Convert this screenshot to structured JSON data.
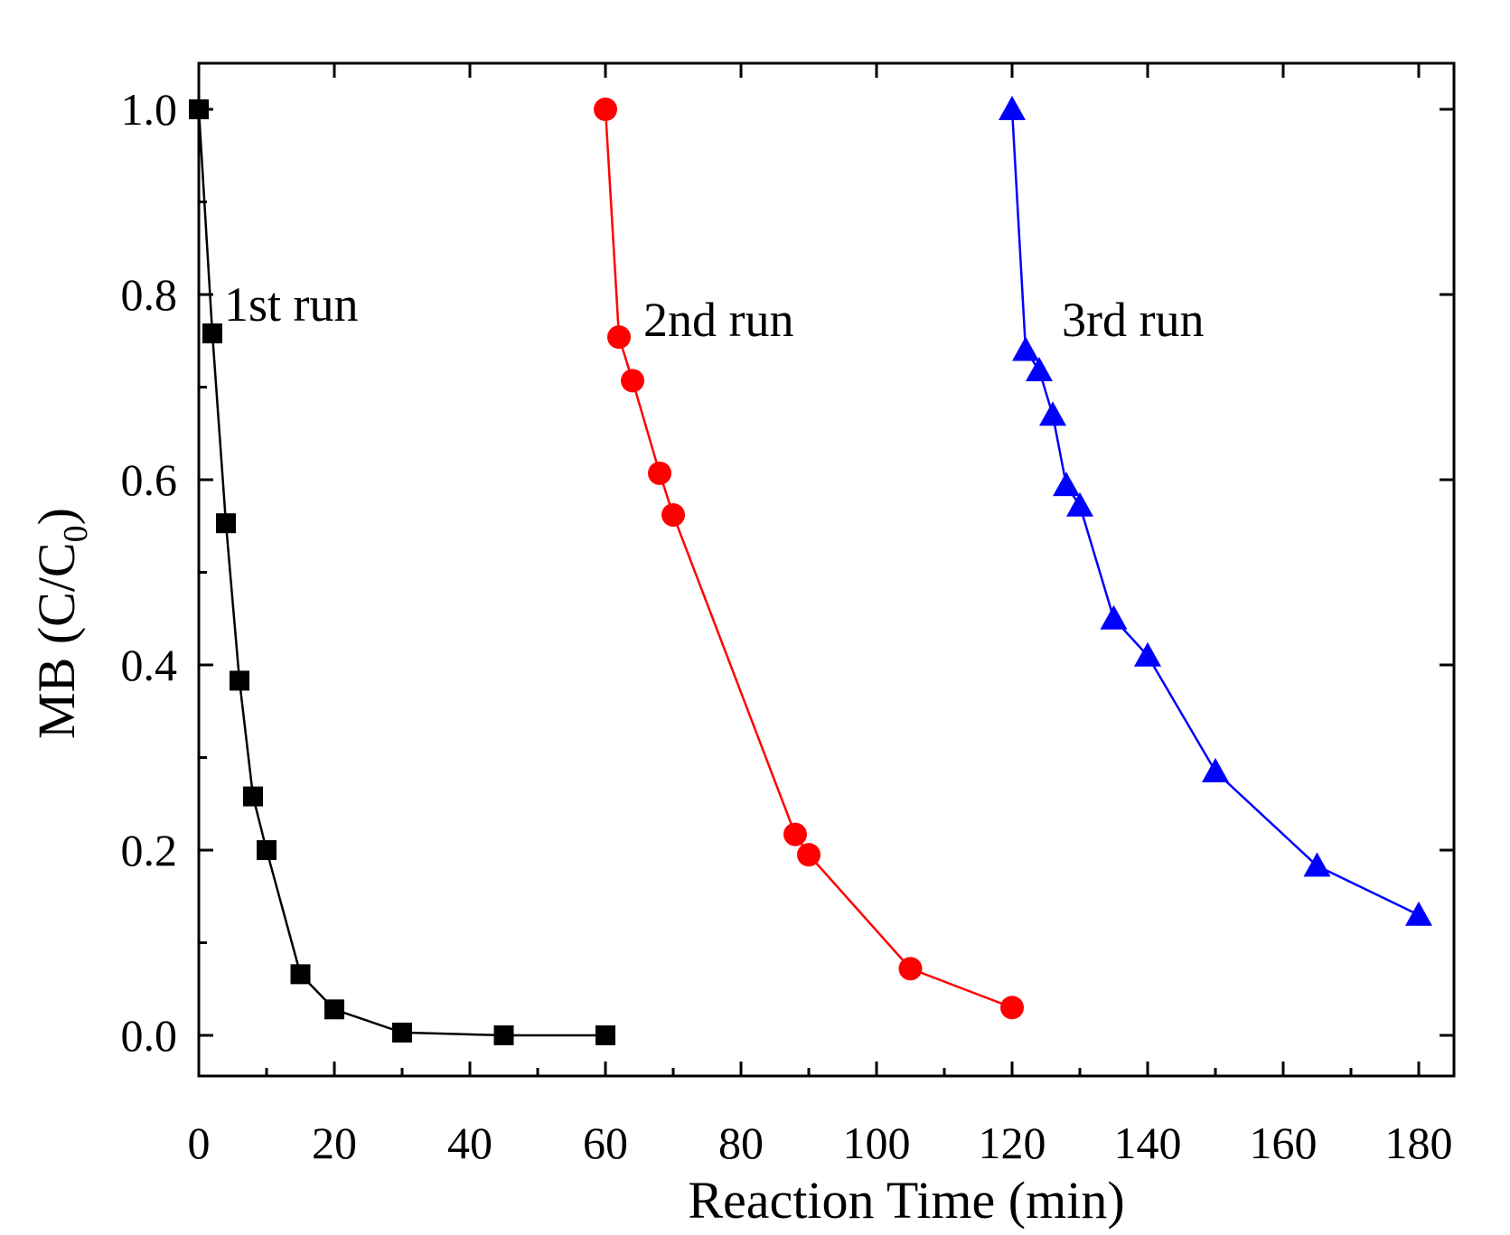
{
  "chart_data": {
    "type": "line",
    "title": "",
    "xlabel": "Reaction Time (min)",
    "ylabel_main": "MB (C/C",
    "ylabel_sub": "0",
    "ylabel_close": ")",
    "xlim": [
      0,
      185
    ],
    "ylim": [
      -0.05,
      1.05
    ],
    "xticks": [
      0,
      20,
      40,
      60,
      80,
      100,
      120,
      140,
      160,
      180
    ],
    "xtick_labels": [
      "0",
      "20",
      "40",
      "60",
      "80",
      "100",
      "120",
      "140",
      "160",
      "180"
    ],
    "yticks": [
      0.0,
      0.2,
      0.4,
      0.6,
      0.8,
      1.0
    ],
    "ytick_labels": [
      "0.0",
      "0.2",
      "0.4",
      "0.6",
      "0.8",
      "1.0"
    ],
    "x_minor_step": 10,
    "y_minor_step": 0.1,
    "grid": false,
    "series": [
      {
        "name": "1st run",
        "marker": "square",
        "color": "#000000",
        "x": [
          0,
          2,
          4,
          6,
          8,
          10,
          15,
          20,
          30,
          45,
          60
        ],
        "y": [
          1.0,
          0.758,
          0.553,
          0.383,
          0.258,
          0.2,
          0.066,
          0.028,
          0.003,
          0.0,
          0.0
        ]
      },
      {
        "name": "2nd run",
        "marker": "circle",
        "color": "#ff0000",
        "x": [
          60,
          62,
          64,
          68,
          70,
          88,
          90,
          105,
          120
        ],
        "y": [
          1.0,
          0.754,
          0.707,
          0.607,
          0.562,
          0.217,
          0.195,
          0.072,
          0.03
        ]
      },
      {
        "name": "3rd run",
        "marker": "triangle",
        "color": "#0000ff",
        "x": [
          120,
          122,
          124,
          126,
          128,
          130,
          135,
          140,
          150,
          165,
          180
        ],
        "y": [
          1.0,
          0.74,
          0.718,
          0.67,
          0.594,
          0.572,
          0.45,
          0.41,
          0.285,
          0.183,
          0.13
        ]
      }
    ],
    "annotations": [
      {
        "text": "1st run",
        "series": 0
      },
      {
        "text": "2nd run",
        "series": 1
      },
      {
        "text": "3rd run",
        "series": 2
      }
    ]
  }
}
